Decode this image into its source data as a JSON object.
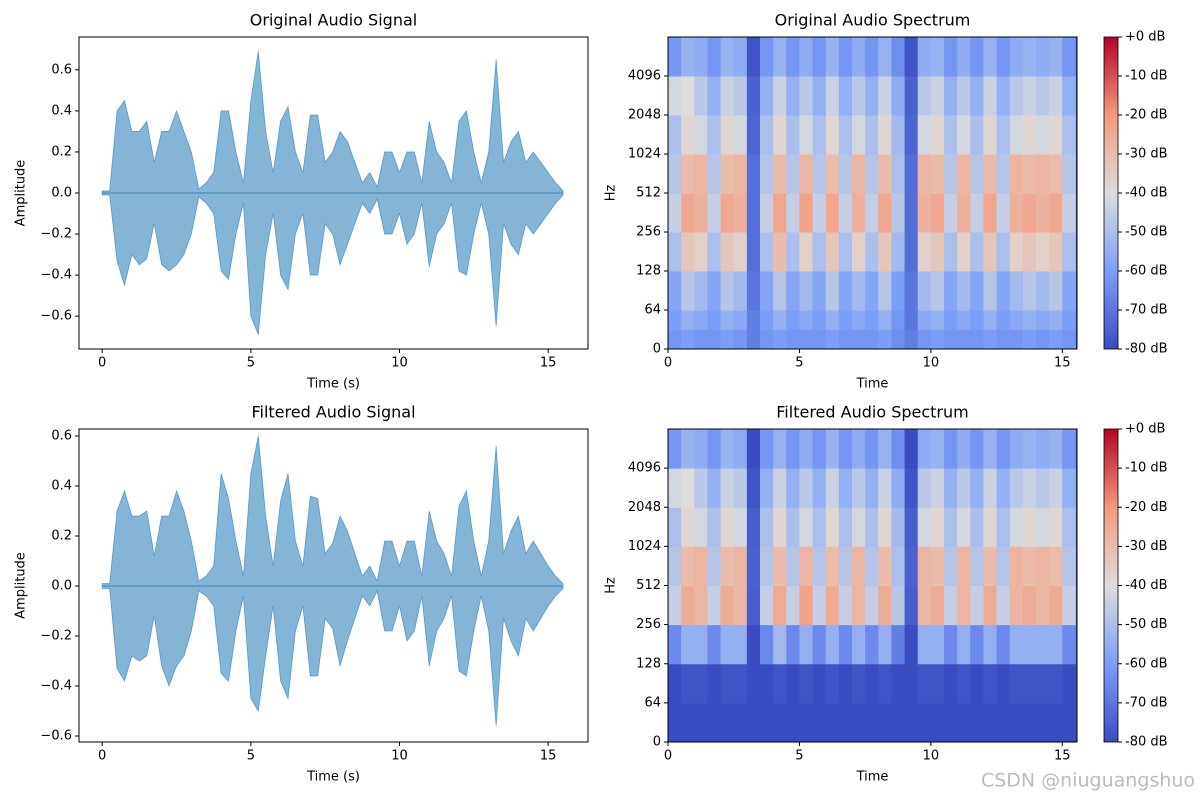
{
  "chart_data": [
    {
      "type": "area",
      "title": "Original Audio Signal",
      "x_label": "Time (s)",
      "y_label": "Amplitude",
      "color": "#1f77b4",
      "xlim": [
        -0.78,
        16.34
      ],
      "xticks": [
        0,
        5,
        10,
        15
      ],
      "ylim": [
        -0.76,
        0.76
      ],
      "yticks": [
        -0.6,
        -0.4,
        -0.2,
        0.0,
        0.2,
        0.4,
        0.6
      ],
      "x": [
        0,
        0.25,
        0.5,
        0.75,
        1,
        1.25,
        1.5,
        1.75,
        2,
        2.25,
        2.5,
        2.75,
        3,
        3.25,
        3.5,
        3.75,
        4,
        4.25,
        4.5,
        4.75,
        5,
        5.25,
        5.5,
        5.75,
        6,
        6.25,
        6.5,
        6.75,
        7,
        7.25,
        7.5,
        7.75,
        8,
        8.25,
        8.5,
        8.75,
        9,
        9.25,
        9.5,
        9.75,
        10,
        10.25,
        10.5,
        10.75,
        11,
        11.25,
        11.5,
        11.75,
        12,
        12.25,
        12.5,
        12.75,
        13,
        13.25,
        13.5,
        13.75,
        14,
        14.25,
        14.5,
        14.75,
        15,
        15.25,
        15.5
      ],
      "upper": [
        0.01,
        0.01,
        0.4,
        0.45,
        0.3,
        0.3,
        0.35,
        0.15,
        0.3,
        0.3,
        0.4,
        0.3,
        0.2,
        0.02,
        0.05,
        0.1,
        0.4,
        0.4,
        0.2,
        0.05,
        0.45,
        0.69,
        0.3,
        0.1,
        0.35,
        0.42,
        0.2,
        0.1,
        0.38,
        0.38,
        0.15,
        0.2,
        0.3,
        0.25,
        0.15,
        0.05,
        0.1,
        0.03,
        0.2,
        0.2,
        0.1,
        0.2,
        0.2,
        0.05,
        0.35,
        0.2,
        0.15,
        0.05,
        0.35,
        0.4,
        0.2,
        0.05,
        0.2,
        0.65,
        0.15,
        0.25,
        0.3,
        0.15,
        0.2,
        0.15,
        0.1,
        0.05,
        0.01
      ],
      "lower": [
        -0.01,
        -0.01,
        -0.33,
        -0.45,
        -0.3,
        -0.35,
        -0.32,
        -0.15,
        -0.35,
        -0.38,
        -0.35,
        -0.3,
        -0.2,
        -0.02,
        -0.05,
        -0.1,
        -0.38,
        -0.42,
        -0.2,
        -0.05,
        -0.6,
        -0.69,
        -0.3,
        -0.1,
        -0.4,
        -0.47,
        -0.2,
        -0.1,
        -0.4,
        -0.4,
        -0.15,
        -0.2,
        -0.35,
        -0.25,
        -0.15,
        -0.05,
        -0.1,
        -0.03,
        -0.2,
        -0.2,
        -0.1,
        -0.25,
        -0.2,
        -0.05,
        -0.36,
        -0.2,
        -0.15,
        -0.05,
        -0.38,
        -0.4,
        -0.2,
        -0.05,
        -0.2,
        -0.65,
        -0.15,
        -0.25,
        -0.3,
        -0.15,
        -0.2,
        -0.15,
        -0.1,
        -0.05,
        -0.01
      ]
    },
    {
      "type": "heatmap",
      "title": "Original Audio Spectrum",
      "x_label": "Time",
      "y_label": "Hz",
      "xlim": [
        0,
        15.56
      ],
      "xticks": [
        0,
        5,
        10,
        15
      ],
      "ylim": [
        0,
        8192
      ],
      "yticks": [
        0,
        64,
        128,
        256,
        512,
        1024,
        2048,
        4096
      ],
      "x_edges": [
        0,
        0.5,
        1,
        1.5,
        2,
        2.5,
        3,
        3.5,
        4,
        4.5,
        5,
        5.5,
        6,
        6.5,
        7,
        7.5,
        8,
        8.5,
        9,
        9.5,
        10,
        10.5,
        11,
        11.5,
        12,
        12.5,
        13,
        13.5,
        14,
        14.5,
        15,
        15.5
      ],
      "y_edges": [
        0,
        32,
        64,
        128,
        256,
        512,
        1024,
        2048,
        4096,
        8192
      ],
      "z": [
        [
          -62,
          -60,
          -58,
          -50,
          -45,
          -48,
          -50,
          -42,
          -62
        ],
        [
          -60,
          -55,
          -48,
          -33,
          -24,
          -30,
          -38,
          -40,
          -54
        ],
        [
          -62,
          -57,
          -52,
          -36,
          -27,
          -28,
          -42,
          -47,
          -56
        ],
        [
          -62,
          -60,
          -58,
          -50,
          -45,
          -48,
          -50,
          -55,
          -62
        ],
        [
          -60,
          -55,
          -48,
          -33,
          -24,
          -30,
          -38,
          -44,
          -54
        ],
        [
          -62,
          -57,
          -52,
          -36,
          -27,
          -28,
          -42,
          -47,
          -56
        ],
        [
          -68,
          -68,
          -70,
          -72,
          -72,
          -72,
          -74,
          -75,
          -78
        ],
        [
          -62,
          -60,
          -58,
          -50,
          -45,
          -48,
          -50,
          -55,
          -62
        ],
        [
          -60,
          -55,
          -48,
          -30,
          -24,
          -30,
          -38,
          -44,
          -54
        ],
        [
          -62,
          -60,
          -58,
          -50,
          -45,
          -48,
          -50,
          -55,
          -62
        ],
        [
          -62,
          -57,
          -52,
          -36,
          -22,
          -28,
          -42,
          -47,
          -56
        ],
        [
          -62,
          -60,
          -58,
          -50,
          -45,
          -48,
          -50,
          -55,
          -62
        ],
        [
          -60,
          -55,
          -48,
          -33,
          -24,
          -30,
          -38,
          -44,
          -54
        ],
        [
          -62,
          -60,
          -58,
          -50,
          -45,
          -48,
          -50,
          -55,
          -62
        ],
        [
          -62,
          -57,
          -52,
          -36,
          -27,
          -28,
          -42,
          -47,
          -56
        ],
        [
          -62,
          -60,
          -58,
          -50,
          -45,
          -48,
          -50,
          -55,
          -62
        ],
        [
          -60,
          -55,
          -48,
          -33,
          -24,
          -30,
          -38,
          -44,
          -54
        ],
        [
          -64,
          -62,
          -60,
          -52,
          -48,
          -50,
          -52,
          -56,
          -64
        ],
        [
          -68,
          -70,
          -70,
          -72,
          -72,
          -72,
          -74,
          -75,
          -78
        ],
        [
          -62,
          -57,
          -52,
          -36,
          -27,
          -28,
          -42,
          -47,
          -56
        ],
        [
          -60,
          -55,
          -48,
          -33,
          -24,
          -30,
          -38,
          -44,
          -54
        ],
        [
          -62,
          -60,
          -58,
          -50,
          -45,
          -48,
          -50,
          -55,
          -62
        ],
        [
          -62,
          -57,
          -52,
          -36,
          -27,
          -28,
          -42,
          -47,
          -56
        ],
        [
          -62,
          -60,
          -58,
          -50,
          -45,
          -48,
          -50,
          -55,
          -62
        ],
        [
          -60,
          -55,
          -48,
          -33,
          -24,
          -30,
          -38,
          -44,
          -54
        ],
        [
          -62,
          -60,
          -58,
          -50,
          -45,
          -48,
          -50,
          -55,
          -62
        ],
        [
          -62,
          -57,
          -52,
          -36,
          -27,
          -28,
          -42,
          -47,
          -56
        ],
        [
          -60,
          -55,
          -48,
          -33,
          -24,
          -30,
          -38,
          -44,
          -54
        ],
        [
          -62,
          -57,
          -52,
          -36,
          -27,
          -28,
          -42,
          -47,
          -56
        ],
        [
          -60,
          -55,
          -48,
          -33,
          -24,
          -30,
          -38,
          -44,
          -54
        ],
        [
          -62,
          -60,
          -58,
          -50,
          -45,
          -48,
          -50,
          -55,
          -62
        ]
      ],
      "colorbar": {
        "lim": [
          -80,
          0
        ],
        "ticks": [
          {
            "value": 0,
            "label": "+0 dB"
          },
          {
            "value": -10,
            "label": "-10 dB"
          },
          {
            "value": -20,
            "label": "-20 dB"
          },
          {
            "value": -30,
            "label": "-30 dB"
          },
          {
            "value": -40,
            "label": "-40 dB"
          },
          {
            "value": -50,
            "label": "-50 dB"
          },
          {
            "value": -60,
            "label": "-60 dB"
          },
          {
            "value": -70,
            "label": "-70 dB"
          },
          {
            "value": -80,
            "label": "-80 dB"
          }
        ]
      }
    },
    {
      "type": "area",
      "title": "Filtered Audio Signal",
      "x_label": "Time (s)",
      "y_label": "Amplitude",
      "color": "#1f77b4",
      "xlim": [
        -0.78,
        16.34
      ],
      "xticks": [
        0,
        5,
        10,
        15
      ],
      "ylim": [
        -0.624,
        0.628
      ],
      "yticks": [
        -0.6,
        -0.4,
        -0.2,
        0.0,
        0.2,
        0.4,
        0.6
      ],
      "x": [
        0,
        0.25,
        0.5,
        0.75,
        1,
        1.25,
        1.5,
        1.75,
        2,
        2.25,
        2.5,
        2.75,
        3,
        3.25,
        3.5,
        3.75,
        4,
        4.25,
        4.5,
        4.75,
        5,
        5.25,
        5.5,
        5.75,
        6,
        6.25,
        6.5,
        6.75,
        7,
        7.25,
        7.5,
        7.75,
        8,
        8.25,
        8.5,
        8.75,
        9,
        9.25,
        9.5,
        9.75,
        10,
        10.25,
        10.5,
        10.75,
        11,
        11.25,
        11.5,
        11.75,
        12,
        12.25,
        12.5,
        12.75,
        13,
        13.25,
        13.5,
        13.75,
        14,
        14.25,
        14.5,
        14.75,
        15,
        15.25,
        15.5
      ],
      "upper": [
        0.01,
        0.01,
        0.3,
        0.38,
        0.28,
        0.28,
        0.3,
        0.12,
        0.28,
        0.28,
        0.38,
        0.3,
        0.18,
        0.02,
        0.04,
        0.08,
        0.45,
        0.35,
        0.18,
        0.04,
        0.45,
        0.6,
        0.28,
        0.08,
        0.34,
        0.45,
        0.18,
        0.08,
        0.36,
        0.35,
        0.13,
        0.17,
        0.28,
        0.22,
        0.13,
        0.04,
        0.08,
        0.02,
        0.18,
        0.18,
        0.08,
        0.18,
        0.18,
        0.04,
        0.3,
        0.18,
        0.13,
        0.04,
        0.32,
        0.38,
        0.18,
        0.04,
        0.18,
        0.56,
        0.13,
        0.22,
        0.28,
        0.13,
        0.18,
        0.13,
        0.08,
        0.04,
        0.01
      ],
      "lower": [
        -0.01,
        -0.01,
        -0.33,
        -0.38,
        -0.28,
        -0.3,
        -0.28,
        -0.12,
        -0.32,
        -0.4,
        -0.32,
        -0.28,
        -0.18,
        -0.02,
        -0.04,
        -0.08,
        -0.35,
        -0.38,
        -0.18,
        -0.04,
        -0.45,
        -0.5,
        -0.28,
        -0.08,
        -0.38,
        -0.45,
        -0.18,
        -0.08,
        -0.36,
        -0.36,
        -0.13,
        -0.17,
        -0.32,
        -0.22,
        -0.13,
        -0.04,
        -0.08,
        -0.02,
        -0.18,
        -0.18,
        -0.08,
        -0.22,
        -0.18,
        -0.04,
        -0.32,
        -0.18,
        -0.13,
        -0.04,
        -0.34,
        -0.36,
        -0.18,
        -0.04,
        -0.18,
        -0.56,
        -0.13,
        -0.22,
        -0.28,
        -0.13,
        -0.18,
        -0.13,
        -0.08,
        -0.04,
        -0.01
      ]
    },
    {
      "type": "heatmap",
      "title": "Filtered Audio Spectrum",
      "x_label": "Time",
      "y_label": "Hz",
      "xlim": [
        0,
        15.56
      ],
      "xticks": [
        0,
        5,
        10,
        15
      ],
      "ylim": [
        0,
        8192
      ],
      "yticks": [
        0,
        64,
        128,
        256,
        512,
        1024,
        2048,
        4096
      ],
      "x_edges": [
        0,
        0.5,
        1,
        1.5,
        2,
        2.5,
        3,
        3.5,
        4,
        4.5,
        5,
        5.5,
        6,
        6.5,
        7,
        7.5,
        8,
        8.5,
        9,
        9.5,
        10,
        10.5,
        11,
        11.5,
        12,
        12.5,
        13,
        13.5,
        14,
        14.5,
        15,
        15.5
      ],
      "y_edges": [
        0,
        32,
        64,
        128,
        256,
        512,
        1024,
        2048,
        4096,
        8192
      ],
      "z": [
        [
          -80,
          -80,
          -80,
          -65,
          -45,
          -48,
          -50,
          -42,
          -62
        ],
        [
          -80,
          -80,
          -78,
          -55,
          -25,
          -30,
          -38,
          -40,
          -54
        ],
        [
          -80,
          -80,
          -78,
          -55,
          -28,
          -28,
          -42,
          -47,
          -56
        ],
        [
          -80,
          -80,
          -80,
          -65,
          -45,
          -48,
          -50,
          -55,
          -62
        ],
        [
          -80,
          -80,
          -78,
          -55,
          -25,
          -30,
          -38,
          -44,
          -54
        ],
        [
          -80,
          -80,
          -78,
          -55,
          -28,
          -28,
          -42,
          -47,
          -56
        ],
        [
          -80,
          -80,
          -80,
          -80,
          -76,
          -75,
          -76,
          -78,
          -80
        ],
        [
          -80,
          -80,
          -80,
          -65,
          -45,
          -48,
          -50,
          -55,
          -62
        ],
        [
          -80,
          -80,
          -78,
          -52,
          -25,
          -30,
          -38,
          -44,
          -54
        ],
        [
          -80,
          -80,
          -80,
          -65,
          -45,
          -48,
          -50,
          -55,
          -62
        ],
        [
          -80,
          -80,
          -78,
          -55,
          -22,
          -28,
          -42,
          -47,
          -56
        ],
        [
          -80,
          -80,
          -80,
          -65,
          -45,
          -48,
          -50,
          -55,
          -62
        ],
        [
          -80,
          -80,
          -78,
          -55,
          -25,
          -30,
          -38,
          -44,
          -54
        ],
        [
          -80,
          -80,
          -80,
          -65,
          -45,
          -48,
          -50,
          -55,
          -62
        ],
        [
          -80,
          -80,
          -78,
          -55,
          -28,
          -28,
          -42,
          -47,
          -56
        ],
        [
          -80,
          -80,
          -80,
          -65,
          -45,
          -48,
          -50,
          -55,
          -62
        ],
        [
          -80,
          -80,
          -78,
          -55,
          -25,
          -30,
          -38,
          -44,
          -54
        ],
        [
          -80,
          -80,
          -80,
          -68,
          -48,
          -50,
          -52,
          -56,
          -64
        ],
        [
          -80,
          -80,
          -80,
          -80,
          -76,
          -75,
          -76,
          -78,
          -80
        ],
        [
          -80,
          -80,
          -78,
          -55,
          -28,
          -28,
          -42,
          -47,
          -56
        ],
        [
          -80,
          -80,
          -78,
          -55,
          -25,
          -30,
          -38,
          -44,
          -54
        ],
        [
          -80,
          -80,
          -80,
          -65,
          -45,
          -48,
          -50,
          -55,
          -62
        ],
        [
          -80,
          -80,
          -78,
          -55,
          -28,
          -28,
          -42,
          -47,
          -56
        ],
        [
          -80,
          -80,
          -80,
          -65,
          -45,
          -48,
          -50,
          -55,
          -62
        ],
        [
          -80,
          -80,
          -78,
          -55,
          -25,
          -30,
          -38,
          -44,
          -54
        ],
        [
          -80,
          -80,
          -80,
          -65,
          -45,
          -48,
          -50,
          -55,
          -62
        ],
        [
          -80,
          -80,
          -78,
          -55,
          -28,
          -28,
          -42,
          -47,
          -56
        ],
        [
          -80,
          -80,
          -78,
          -55,
          -25,
          -30,
          -38,
          -44,
          -54
        ],
        [
          -80,
          -80,
          -78,
          -55,
          -28,
          -28,
          -42,
          -47,
          -56
        ],
        [
          -80,
          -80,
          -78,
          -55,
          -25,
          -30,
          -38,
          -44,
          -54
        ],
        [
          -80,
          -80,
          -80,
          -65,
          -45,
          -48,
          -50,
          -55,
          -62
        ]
      ],
      "colorbar": {
        "lim": [
          -80,
          0
        ],
        "ticks": [
          {
            "value": 0,
            "label": "+0 dB"
          },
          {
            "value": -10,
            "label": "-10 dB"
          },
          {
            "value": -20,
            "label": "-20 dB"
          },
          {
            "value": -30,
            "label": "-30 dB"
          },
          {
            "value": -40,
            "label": "-40 dB"
          },
          {
            "value": -50,
            "label": "-50 dB"
          },
          {
            "value": -60,
            "label": "-60 dB"
          },
          {
            "value": -70,
            "label": "-70 dB"
          },
          {
            "value": -80,
            "label": "-80 dB"
          }
        ]
      }
    }
  ],
  "watermark": "CSDN @niuguangshuo"
}
